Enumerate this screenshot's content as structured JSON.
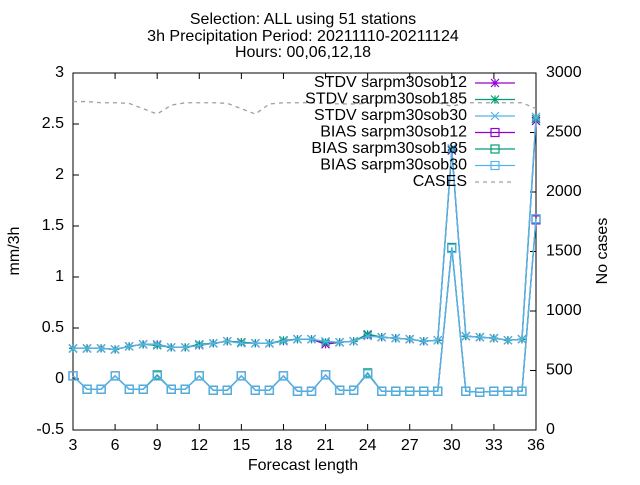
{
  "chart_data": {
    "type": "line",
    "title_lines": [
      "Selection: ALL using    51 stations",
      "3h Precipitation   Period: 20211110-20211124",
      "Hours: 00,06,12,18"
    ],
    "xlabel": "Forecast length",
    "ylabel": "mm/3h",
    "y2label": "No cases",
    "x": [
      3,
      4,
      5,
      6,
      7,
      8,
      9,
      10,
      11,
      12,
      13,
      14,
      15,
      16,
      17,
      18,
      19,
      20,
      21,
      22,
      23,
      24,
      25,
      26,
      27,
      28,
      29,
      30,
      31,
      32,
      33,
      34,
      35,
      36
    ],
    "xlim": [
      3,
      36
    ],
    "xticks": [
      3,
      6,
      9,
      12,
      15,
      18,
      21,
      24,
      27,
      30,
      33,
      36
    ],
    "ylim": [
      -0.5,
      3
    ],
    "yticks": [
      -0.5,
      0,
      0.5,
      1,
      1.5,
      2,
      2.5,
      3
    ],
    "y2lim": [
      0,
      3000
    ],
    "y2ticks": [
      0,
      500,
      1000,
      1500,
      2000,
      2500,
      3000
    ],
    "legend": "top-right",
    "series": [
      {
        "name": "STDV sarpm30sob12",
        "color": "#9400d3",
        "marker": "star",
        "values": [
          0.3,
          0.3,
          0.3,
          0.29,
          0.32,
          0.34,
          0.34,
          0.31,
          0.31,
          0.33,
          0.35,
          0.37,
          0.36,
          0.35,
          0.35,
          0.37,
          0.39,
          0.39,
          0.34,
          0.36,
          0.37,
          0.43,
          0.41,
          0.4,
          0.39,
          0.37,
          0.38,
          2.24,
          0.42,
          0.41,
          0.4,
          0.38,
          0.39,
          2.53
        ]
      },
      {
        "name": "STDV sarpm30sob185",
        "color": "#009e73",
        "marker": "star",
        "values": [
          0.3,
          0.3,
          0.3,
          0.29,
          0.32,
          0.34,
          0.33,
          0.31,
          0.31,
          0.34,
          0.35,
          0.37,
          0.36,
          0.35,
          0.35,
          0.38,
          0.39,
          0.39,
          0.36,
          0.36,
          0.37,
          0.44,
          0.41,
          0.4,
          0.39,
          0.37,
          0.38,
          2.25,
          0.42,
          0.41,
          0.4,
          0.38,
          0.39,
          2.55
        ]
      },
      {
        "name": "STDV sarpm30sob30",
        "color": "#56b4e9",
        "marker": "x",
        "values": [
          0.3,
          0.3,
          0.3,
          0.29,
          0.32,
          0.34,
          0.34,
          0.31,
          0.31,
          0.33,
          0.35,
          0.37,
          0.35,
          0.35,
          0.35,
          0.37,
          0.39,
          0.39,
          0.37,
          0.36,
          0.37,
          0.42,
          0.41,
          0.4,
          0.39,
          0.37,
          0.38,
          2.26,
          0.42,
          0.41,
          0.4,
          0.38,
          0.39,
          2.57
        ]
      },
      {
        "name": "BIAS sarpm30sob12",
        "color": "#9400d3",
        "marker": "square",
        "values": [
          0.03,
          -0.1,
          -0.1,
          0.03,
          -0.1,
          -0.1,
          0.03,
          -0.1,
          -0.1,
          0.03,
          -0.11,
          -0.11,
          0.03,
          -0.11,
          -0.11,
          0.03,
          -0.12,
          -0.12,
          0.04,
          -0.11,
          -0.11,
          0.05,
          -0.12,
          -0.12,
          -0.12,
          -0.12,
          -0.12,
          1.28,
          -0.12,
          -0.13,
          -0.12,
          -0.12,
          -0.12,
          1.56
        ]
      },
      {
        "name": "BIAS sarpm30sob185",
        "color": "#009e73",
        "marker": "square",
        "values": [
          0.03,
          -0.1,
          -0.1,
          0.03,
          -0.1,
          -0.1,
          0.04,
          -0.1,
          -0.1,
          0.03,
          -0.11,
          -0.11,
          0.03,
          -0.11,
          -0.11,
          0.03,
          -0.12,
          -0.12,
          0.04,
          -0.11,
          -0.11,
          0.06,
          -0.12,
          -0.12,
          -0.12,
          -0.12,
          -0.12,
          1.29,
          -0.12,
          -0.13,
          -0.12,
          -0.12,
          -0.12,
          1.57
        ]
      },
      {
        "name": "BIAS sarpm30sob30",
        "color": "#56b4e9",
        "marker": "square",
        "values": [
          0.03,
          -0.1,
          -0.1,
          0.03,
          -0.1,
          -0.1,
          0.03,
          -0.1,
          -0.1,
          0.03,
          -0.11,
          -0.11,
          0.03,
          -0.11,
          -0.11,
          0.03,
          -0.12,
          -0.12,
          0.04,
          -0.11,
          -0.11,
          0.05,
          -0.12,
          -0.12,
          -0.12,
          -0.12,
          -0.12,
          1.28,
          -0.12,
          -0.13,
          -0.12,
          -0.12,
          -0.12,
          1.57
        ]
      },
      {
        "name": "CASES",
        "color": "#a0a0a0",
        "marker": "none",
        "dashed": true,
        "axis": "y2",
        "values": [
          2760,
          2760,
          2750,
          2750,
          2745,
          2700,
          2655,
          2730,
          2750,
          2750,
          2750,
          2745,
          2700,
          2655,
          2740,
          2750,
          2750,
          2750,
          2745,
          2740,
          2740,
          2745,
          2750,
          2750,
          2750,
          2750,
          2750,
          2720,
          2750,
          2750,
          2750,
          2750,
          2750,
          2700
        ]
      }
    ]
  }
}
